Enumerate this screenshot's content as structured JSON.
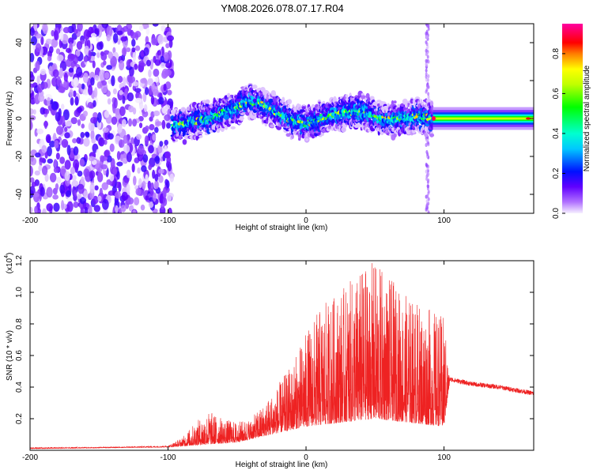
{
  "title": "YM08.2026.078.07.17.R04",
  "chart_data": [
    {
      "type": "heatmap",
      "title": "YM08.2026.078.07.17.R04",
      "xlabel": "Height of straight line (km)",
      "ylabel": "Frequency (Hz)",
      "xlim": [
        -200,
        165
      ],
      "ylim": [
        -50,
        50
      ],
      "x_ticks": [
        -200,
        -100,
        0,
        100
      ],
      "x_tick_labels": [
        "-200",
        "-100",
        "0",
        "100"
      ],
      "y_ticks": [
        -40,
        -20,
        0,
        20,
        40
      ],
      "y_tick_labels": [
        "-40",
        "-20",
        "0",
        "20",
        "40"
      ],
      "colorbar": {
        "label": "Normalized spectral amplitude",
        "range": [
          0,
          0.95
        ],
        "ticks": [
          0.0,
          0.2,
          0.4,
          0.6,
          0.8
        ],
        "tick_labels": [
          "0.0",
          "0.2",
          "0.4",
          "0.6",
          "0.8"
        ],
        "colormap": [
          "#f0f0ff",
          "#8000ff",
          "#0000ff",
          "#00ffff",
          "#00ff00",
          "#ffff00",
          "#ff8000",
          "#ff0000",
          "#ff00c0"
        ]
      },
      "regions": [
        {
          "name": "noise",
          "x_range": [
            -200,
            -97
          ],
          "freq_range": [
            -50,
            50
          ],
          "amplitude": 0.05
        },
        {
          "name": "signal-ridge",
          "x_range": [
            -97,
            92
          ],
          "amplitude": 0.35
        },
        {
          "name": "artifact",
          "x": 88,
          "amplitude": 0.05
        },
        {
          "name": "stable-tone",
          "x_range": [
            92,
            165
          ],
          "freq": 0,
          "amplitude": 0.6
        }
      ],
      "ridge": {
        "x": [
          -97,
          -85,
          -70,
          -60,
          -50,
          -45,
          -40,
          -30,
          -20,
          -10,
          0,
          10,
          20,
          30,
          40,
          50,
          60,
          70,
          80,
          92
        ],
        "freq": [
          -4,
          -2,
          0,
          3,
          5,
          8,
          9,
          7,
          3,
          -1,
          -3,
          0,
          2,
          3,
          4,
          1,
          -1,
          0,
          1,
          0
        ]
      }
    },
    {
      "type": "line",
      "xlabel": "Height of straight line (km)",
      "ylabel": "SNR (10 * v/v)",
      "y_scale_label": "(x10",
      "y_scale_exponent": "4",
      "y_scale_close": ")",
      "xlim": [
        -200,
        165
      ],
      "ylim": [
        0,
        1.2
      ],
      "x_ticks": [
        -200,
        -100,
        0,
        100
      ],
      "x_tick_labels": [
        "-200",
        "-100",
        "0",
        "100"
      ],
      "y_ticks": [
        0.2,
        0.4,
        0.6,
        0.8,
        1.0,
        1.2
      ],
      "y_tick_labels": [
        "0.2",
        "0.4",
        "0.6",
        "0.8",
        "1.0",
        "1.2"
      ],
      "color": "#ee2222",
      "series": [
        {
          "name": "SNR",
          "envelope_x": [
            -200,
            -150,
            -100,
            -90,
            -80,
            -70,
            -60,
            -50,
            -40,
            -30,
            -20,
            -10,
            0,
            10,
            20,
            30,
            40,
            50,
            60,
            70,
            80,
            90,
            100,
            104,
            120,
            140,
            165
          ],
          "envelope_y": [
            0.02,
            0.02,
            0.03,
            0.08,
            0.18,
            0.25,
            0.2,
            0.18,
            0.2,
            0.3,
            0.42,
            0.55,
            0.75,
            0.9,
            0.98,
            1.05,
            1.15,
            1.2,
            1.1,
            1.0,
            0.95,
            0.9,
            0.85,
            0.45,
            0.42,
            0.4,
            0.36
          ],
          "floor_x": [
            -200,
            -100,
            -50,
            0,
            50,
            100,
            104,
            165
          ],
          "floor_y": [
            0.01,
            0.02,
            0.05,
            0.15,
            0.2,
            0.15,
            0.42,
            0.35
          ]
        }
      ]
    }
  ]
}
